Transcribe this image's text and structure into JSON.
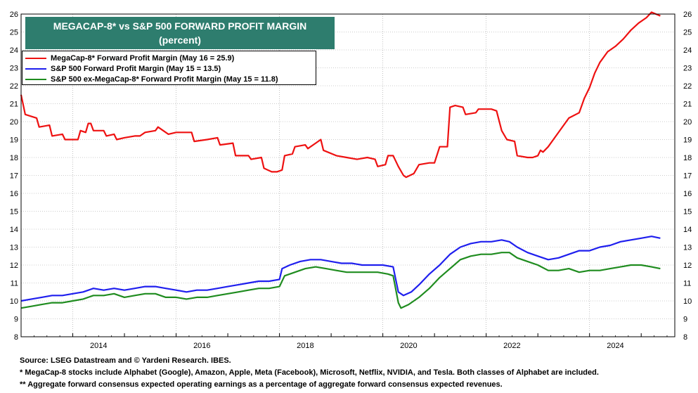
{
  "chart_data": {
    "type": "line",
    "title": "MEGACAP-8* vs S&P 500 FORWARD PROFIT MARGIN",
    "subtitle": "(percent)",
    "ylim": [
      8,
      26
    ],
    "yticks": [
      8,
      9,
      10,
      11,
      12,
      13,
      14,
      15,
      16,
      17,
      18,
      19,
      20,
      21,
      22,
      23,
      24,
      25,
      26
    ],
    "xlim": [
      2013.0,
      2025.65
    ],
    "xticks": [
      2014,
      2016,
      2018,
      2020,
      2022,
      2024
    ],
    "grid": true,
    "legend_position": "top-left",
    "series": [
      {
        "name": "MegaCap-8* Forward Profit Margin (May 16 = 25.9)",
        "color": "#ee1111",
        "points": [
          [
            2013.0,
            21.5
          ],
          [
            2013.08,
            20.4
          ],
          [
            2013.3,
            20.2
          ],
          [
            2013.35,
            19.7
          ],
          [
            2013.55,
            19.8
          ],
          [
            2013.6,
            19.2
          ],
          [
            2013.8,
            19.3
          ],
          [
            2013.85,
            19.0
          ],
          [
            2014.1,
            19.0
          ],
          [
            2014.15,
            19.5
          ],
          [
            2014.25,
            19.4
          ],
          [
            2014.3,
            19.9
          ],
          [
            2014.35,
            19.9
          ],
          [
            2014.4,
            19.5
          ],
          [
            2014.6,
            19.5
          ],
          [
            2014.65,
            19.2
          ],
          [
            2014.8,
            19.3
          ],
          [
            2014.85,
            19.0
          ],
          [
            2015.0,
            19.1
          ],
          [
            2015.2,
            19.2
          ],
          [
            2015.3,
            19.2
          ],
          [
            2015.4,
            19.4
          ],
          [
            2015.6,
            19.5
          ],
          [
            2015.65,
            19.7
          ],
          [
            2015.75,
            19.5
          ],
          [
            2015.85,
            19.3
          ],
          [
            2016.0,
            19.4
          ],
          [
            2016.3,
            19.4
          ],
          [
            2016.35,
            18.9
          ],
          [
            2016.6,
            19.0
          ],
          [
            2016.8,
            19.1
          ],
          [
            2016.85,
            18.7
          ],
          [
            2017.1,
            18.8
          ],
          [
            2017.15,
            18.1
          ],
          [
            2017.4,
            18.1
          ],
          [
            2017.45,
            17.9
          ],
          [
            2017.65,
            18.0
          ],
          [
            2017.7,
            17.4
          ],
          [
            2017.85,
            17.2
          ],
          [
            2017.95,
            17.2
          ],
          [
            2018.05,
            17.3
          ],
          [
            2018.1,
            18.1
          ],
          [
            2018.25,
            18.2
          ],
          [
            2018.3,
            18.6
          ],
          [
            2018.5,
            18.7
          ],
          [
            2018.55,
            18.5
          ],
          [
            2018.7,
            18.8
          ],
          [
            2018.8,
            19.0
          ],
          [
            2018.85,
            18.4
          ],
          [
            2019.1,
            18.1
          ],
          [
            2019.3,
            18.0
          ],
          [
            2019.5,
            17.9
          ],
          [
            2019.7,
            18.0
          ],
          [
            2019.85,
            17.9
          ],
          [
            2019.9,
            17.5
          ],
          [
            2020.05,
            17.6
          ],
          [
            2020.1,
            18.1
          ],
          [
            2020.2,
            18.1
          ],
          [
            2020.3,
            17.5
          ],
          [
            2020.4,
            17.0
          ],
          [
            2020.45,
            16.9
          ],
          [
            2020.6,
            17.1
          ],
          [
            2020.7,
            17.6
          ],
          [
            2020.9,
            17.7
          ],
          [
            2021.0,
            17.7
          ],
          [
            2021.1,
            18.6
          ],
          [
            2021.25,
            18.6
          ],
          [
            2021.3,
            20.8
          ],
          [
            2021.4,
            20.9
          ],
          [
            2021.55,
            20.8
          ],
          [
            2021.6,
            20.4
          ],
          [
            2021.8,
            20.5
          ],
          [
            2021.85,
            20.7
          ],
          [
            2022.1,
            20.7
          ],
          [
            2022.2,
            20.6
          ],
          [
            2022.3,
            19.5
          ],
          [
            2022.4,
            19.0
          ],
          [
            2022.55,
            18.9
          ],
          [
            2022.6,
            18.1
          ],
          [
            2022.8,
            18.0
          ],
          [
            2022.9,
            18.0
          ],
          [
            2023.0,
            18.1
          ],
          [
            2023.05,
            18.4
          ],
          [
            2023.1,
            18.3
          ],
          [
            2023.2,
            18.6
          ],
          [
            2023.35,
            19.2
          ],
          [
            2023.5,
            19.8
          ],
          [
            2023.6,
            20.2
          ],
          [
            2023.8,
            20.5
          ],
          [
            2023.9,
            21.3
          ],
          [
            2024.0,
            21.9
          ],
          [
            2024.1,
            22.7
          ],
          [
            2024.2,
            23.3
          ],
          [
            2024.35,
            23.9
          ],
          [
            2024.5,
            24.2
          ],
          [
            2024.65,
            24.6
          ],
          [
            2024.8,
            25.1
          ],
          [
            2024.95,
            25.5
          ],
          [
            2025.1,
            25.8
          ],
          [
            2025.2,
            26.1
          ],
          [
            2025.37,
            25.9
          ]
        ]
      },
      {
        "name": "S&P 500 Forward Profit Margin (May 15 = 13.5)",
        "color": "#1f1fee",
        "points": [
          [
            2013.0,
            10.0
          ],
          [
            2013.2,
            10.1
          ],
          [
            2013.4,
            10.2
          ],
          [
            2013.6,
            10.3
          ],
          [
            2013.8,
            10.3
          ],
          [
            2014.0,
            10.4
          ],
          [
            2014.2,
            10.5
          ],
          [
            2014.4,
            10.7
          ],
          [
            2014.6,
            10.6
          ],
          [
            2014.8,
            10.7
          ],
          [
            2015.0,
            10.6
          ],
          [
            2015.2,
            10.7
          ],
          [
            2015.4,
            10.8
          ],
          [
            2015.6,
            10.8
          ],
          [
            2015.8,
            10.7
          ],
          [
            2016.0,
            10.6
          ],
          [
            2016.2,
            10.5
          ],
          [
            2016.4,
            10.6
          ],
          [
            2016.6,
            10.6
          ],
          [
            2016.8,
            10.7
          ],
          [
            2017.0,
            10.8
          ],
          [
            2017.2,
            10.9
          ],
          [
            2017.4,
            11.0
          ],
          [
            2017.6,
            11.1
          ],
          [
            2017.8,
            11.1
          ],
          [
            2018.0,
            11.2
          ],
          [
            2018.05,
            11.8
          ],
          [
            2018.2,
            12.0
          ],
          [
            2018.4,
            12.2
          ],
          [
            2018.6,
            12.3
          ],
          [
            2018.8,
            12.3
          ],
          [
            2019.0,
            12.2
          ],
          [
            2019.2,
            12.1
          ],
          [
            2019.4,
            12.1
          ],
          [
            2019.6,
            12.0
          ],
          [
            2019.8,
            12.0
          ],
          [
            2020.0,
            12.0
          ],
          [
            2020.2,
            11.9
          ],
          [
            2020.3,
            10.5
          ],
          [
            2020.4,
            10.3
          ],
          [
            2020.55,
            10.5
          ],
          [
            2020.7,
            10.9
          ],
          [
            2020.9,
            11.5
          ],
          [
            2021.1,
            12.0
          ],
          [
            2021.3,
            12.6
          ],
          [
            2021.5,
            13.0
          ],
          [
            2021.7,
            13.2
          ],
          [
            2021.9,
            13.3
          ],
          [
            2022.1,
            13.3
          ],
          [
            2022.3,
            13.4
          ],
          [
            2022.45,
            13.3
          ],
          [
            2022.6,
            13.0
          ],
          [
            2022.8,
            12.7
          ],
          [
            2023.0,
            12.5
          ],
          [
            2023.2,
            12.3
          ],
          [
            2023.4,
            12.4
          ],
          [
            2023.6,
            12.6
          ],
          [
            2023.8,
            12.8
          ],
          [
            2024.0,
            12.8
          ],
          [
            2024.2,
            13.0
          ],
          [
            2024.4,
            13.1
          ],
          [
            2024.6,
            13.3
          ],
          [
            2024.8,
            13.4
          ],
          [
            2025.0,
            13.5
          ],
          [
            2025.2,
            13.6
          ],
          [
            2025.37,
            13.5
          ]
        ]
      },
      {
        "name": "S&P 500 ex-MegaCap-8* Forward Profit Margin (May 15 = 11.8)",
        "color": "#1f8c1f",
        "points": [
          [
            2013.0,
            9.6
          ],
          [
            2013.2,
            9.7
          ],
          [
            2013.4,
            9.8
          ],
          [
            2013.6,
            9.9
          ],
          [
            2013.8,
            9.9
          ],
          [
            2014.0,
            10.0
          ],
          [
            2014.2,
            10.1
          ],
          [
            2014.4,
            10.3
          ],
          [
            2014.6,
            10.3
          ],
          [
            2014.8,
            10.4
          ],
          [
            2015.0,
            10.2
          ],
          [
            2015.2,
            10.3
          ],
          [
            2015.4,
            10.4
          ],
          [
            2015.6,
            10.4
          ],
          [
            2015.8,
            10.2
          ],
          [
            2016.0,
            10.2
          ],
          [
            2016.2,
            10.1
          ],
          [
            2016.4,
            10.2
          ],
          [
            2016.6,
            10.2
          ],
          [
            2016.8,
            10.3
          ],
          [
            2017.0,
            10.4
          ],
          [
            2017.2,
            10.5
          ],
          [
            2017.4,
            10.6
          ],
          [
            2017.6,
            10.7
          ],
          [
            2017.8,
            10.7
          ],
          [
            2018.0,
            10.8
          ],
          [
            2018.1,
            11.4
          ],
          [
            2018.3,
            11.6
          ],
          [
            2018.5,
            11.8
          ],
          [
            2018.7,
            11.9
          ],
          [
            2018.9,
            11.8
          ],
          [
            2019.1,
            11.7
          ],
          [
            2019.3,
            11.6
          ],
          [
            2019.5,
            11.6
          ],
          [
            2019.7,
            11.6
          ],
          [
            2019.9,
            11.6
          ],
          [
            2020.1,
            11.5
          ],
          [
            2020.2,
            11.4
          ],
          [
            2020.3,
            9.9
          ],
          [
            2020.35,
            9.6
          ],
          [
            2020.5,
            9.8
          ],
          [
            2020.7,
            10.2
          ],
          [
            2020.9,
            10.7
          ],
          [
            2021.1,
            11.3
          ],
          [
            2021.3,
            11.8
          ],
          [
            2021.5,
            12.3
          ],
          [
            2021.7,
            12.5
          ],
          [
            2021.9,
            12.6
          ],
          [
            2022.1,
            12.6
          ],
          [
            2022.3,
            12.7
          ],
          [
            2022.45,
            12.7
          ],
          [
            2022.6,
            12.4
          ],
          [
            2022.8,
            12.2
          ],
          [
            2023.0,
            12.0
          ],
          [
            2023.2,
            11.7
          ],
          [
            2023.4,
            11.7
          ],
          [
            2023.6,
            11.8
          ],
          [
            2023.8,
            11.6
          ],
          [
            2024.0,
            11.7
          ],
          [
            2024.2,
            11.7
          ],
          [
            2024.4,
            11.8
          ],
          [
            2024.6,
            11.9
          ],
          [
            2024.8,
            12.0
          ],
          [
            2025.0,
            12.0
          ],
          [
            2025.2,
            11.9
          ],
          [
            2025.37,
            11.8
          ]
        ]
      }
    ]
  },
  "footer": {
    "source": "Source: LSEG Datastream and © Yardeni Research. IBES.",
    "note1": "* MegaCap-8 stocks include Alphabet (Google), Amazon, Apple, Meta (Facebook), Microsoft, Netflix, NVIDIA, and Tesla. Both classes of Alphabet are included.",
    "note2": "** Aggregate forward consensus expected operating earnings as a percentage of aggregate forward consensus expected revenues."
  }
}
